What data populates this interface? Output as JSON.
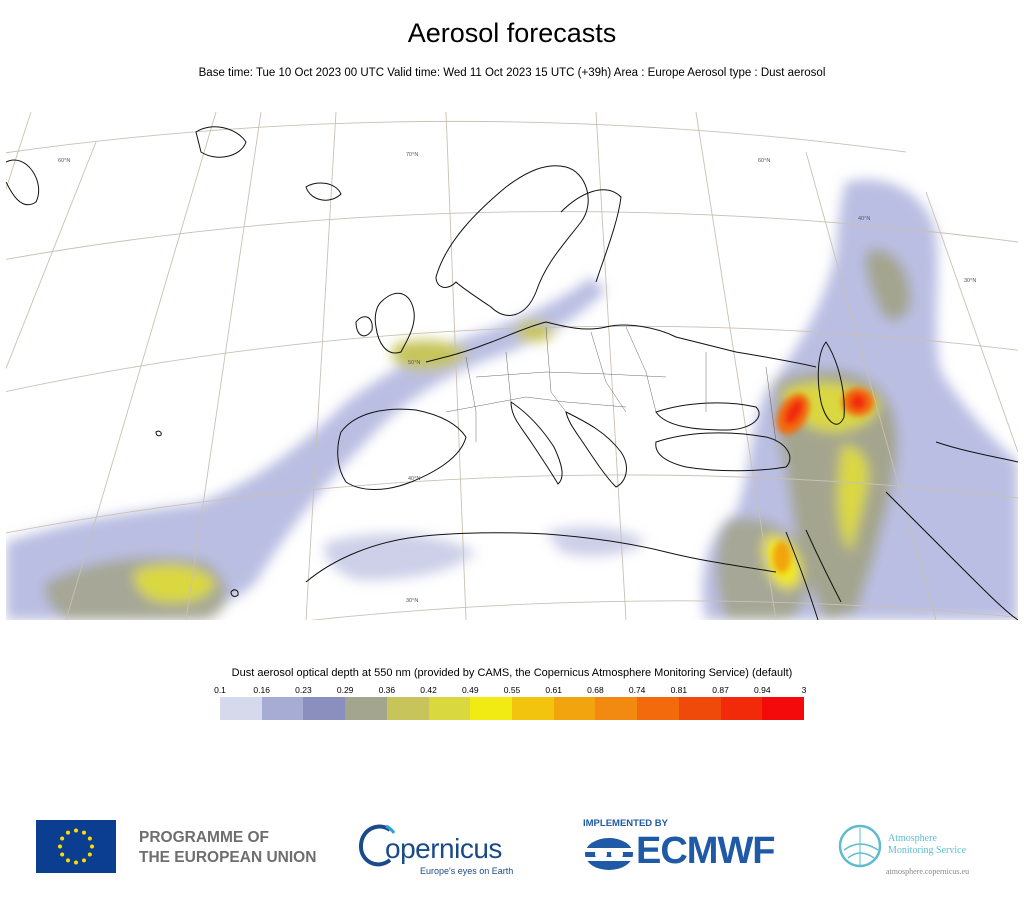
{
  "header": {
    "title": "Aerosol forecasts",
    "subtitle": "Base time: Tue 10 Oct 2023 00 UTC Valid time: Wed 11 Oct 2023 15 UTC (+39h) Area : Europe Aerosol type : Dust aerosol"
  },
  "map": {
    "region": "Europe",
    "graticule_labels": [
      "70°N",
      "60°N",
      "50°N",
      "40°N",
      "30°N",
      "30°N",
      "40°N",
      "60°N"
    ],
    "background_color": "#ffffff",
    "coastline_color": "#111111",
    "graticule_color": "#c9c1b2"
  },
  "legend": {
    "title": "Dust aerosol optical depth at 550 nm (provided by CAMS, the Copernicus Atmosphere Monitoring Service) (default)",
    "ticks": [
      "0.1",
      "0.16",
      "0.23",
      "0.29",
      "0.36",
      "0.42",
      "0.49",
      "0.55",
      "0.61",
      "0.68",
      "0.74",
      "0.81",
      "0.87",
      "0.94",
      "3"
    ],
    "colors": [
      "#d6d9ec",
      "#a7acd5",
      "#8a8fbe",
      "#a4a58e",
      "#c6c45a",
      "#dad83f",
      "#f2ea13",
      "#f2c40e",
      "#f2a40e",
      "#f28910",
      "#f26a0c",
      "#f04a0a",
      "#f22a0a",
      "#f40a0a"
    ]
  },
  "footer": {
    "eu_label_line1": "PROGRAMME OF",
    "eu_label_line2": "THE EUROPEAN UNION",
    "copernicus_word": "opernicus",
    "copernicus_tagline": "Europe's eyes on Earth",
    "implemented_by": "IMPLEMENTED BY",
    "ecmwf": "ECMWF",
    "atmosphere_line1": "Atmosphere",
    "atmosphere_line2": "Monitoring Service",
    "atmosphere_url": "atmosphere.copernicus.eu"
  }
}
